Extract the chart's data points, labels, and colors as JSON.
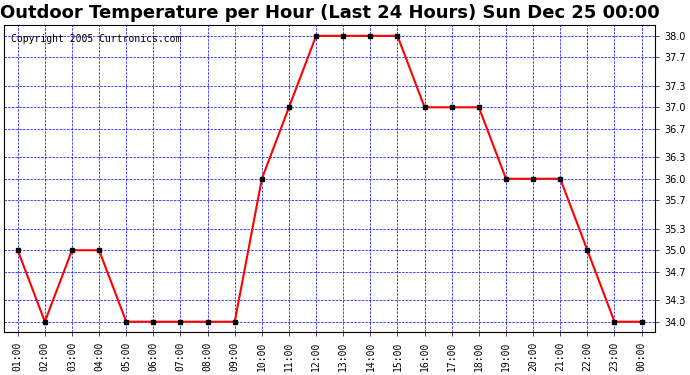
{
  "title": "Outdoor Temperature per Hour (Last 24 Hours) Sun Dec 25 00:00",
  "copyright": "Copyright 2005 Curtronics.com",
  "hours": [
    "01:00",
    "02:00",
    "03:00",
    "04:00",
    "05:00",
    "06:00",
    "07:00",
    "08:00",
    "09:00",
    "10:00",
    "11:00",
    "12:00",
    "13:00",
    "14:00",
    "15:00",
    "16:00",
    "17:00",
    "18:00",
    "19:00",
    "20:00",
    "21:00",
    "22:00",
    "23:00",
    "00:00"
  ],
  "temps": [
    35.0,
    34.0,
    35.0,
    35.0,
    34.0,
    34.0,
    34.0,
    34.0,
    34.0,
    36.0,
    37.0,
    38.0,
    38.0,
    38.0,
    38.0,
    37.0,
    37.0,
    37.0,
    36.0,
    36.0,
    36.0,
    35.0,
    34.0,
    34.0
  ],
  "ylim": [
    33.85,
    38.15
  ],
  "yticks": [
    34.0,
    34.3,
    34.7,
    35.0,
    35.3,
    35.7,
    36.0,
    36.3,
    36.7,
    37.0,
    37.3,
    37.7,
    38.0
  ],
  "line_color": "red",
  "marker": "s",
  "marker_color": "black",
  "marker_size": 3,
  "grid_color": "blue",
  "bg_color": "white",
  "plot_bg_color": "white",
  "title_fontsize": 13,
  "copyright_fontsize": 7
}
